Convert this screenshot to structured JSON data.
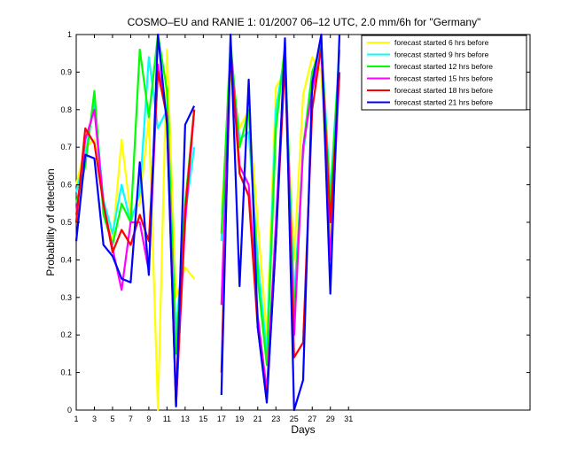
{
  "chart_data": {
    "type": "line",
    "title": "COSMO–EU and RANIE 1: 01/2007 06–12 UTC, 2.0 mm/6h for \"Germany\"",
    "xlabel": "Days",
    "ylabel": "Probability of detection",
    "xlim": [
      1,
      51
    ],
    "ylim": [
      0,
      1
    ],
    "x_ticks": [
      1,
      3,
      5,
      7,
      9,
      11,
      13,
      15,
      17,
      19,
      21,
      23,
      25,
      27,
      29,
      31
    ],
    "y_ticks": [
      0,
      0.1,
      0.2,
      0.3,
      0.4,
      0.5,
      0.6,
      0.7,
      0.8,
      0.9,
      1
    ],
    "y_tick_labels": [
      "0",
      "0.1",
      "0.2",
      "0.3",
      "0.4",
      "0.5",
      "0.6",
      "0.7",
      "0.8",
      "0.9",
      "1"
    ],
    "grid": false,
    "legend_position": "top-right",
    "series": [
      {
        "name": "forecast started 6 hrs before",
        "color": "#ffff00",
        "values": [
          0.6,
          0.7,
          0.72,
          0.55,
          0.45,
          0.72,
          0.52,
          0.55,
          0.78,
          0.0,
          0.96,
          0.3,
          0.38,
          0.35,
          null,
          null,
          0.52,
          0.9,
          0.75,
          0.8,
          0.5,
          0.2,
          0.86,
          0.9,
          0.4,
          0.84,
          0.94,
          0.9,
          0.45,
          0.9,
          null
        ]
      },
      {
        "name": "forecast started 9 hrs before",
        "color": "#00ffff",
        "values": [
          0.58,
          0.68,
          0.82,
          0.56,
          0.47,
          0.6,
          0.5,
          0.58,
          0.94,
          0.75,
          0.8,
          0.2,
          0.52,
          0.7,
          null,
          null,
          0.45,
          0.95,
          0.72,
          0.74,
          0.4,
          0.15,
          0.8,
          0.95,
          0.3,
          0.68,
          0.88,
          0.98,
          0.58,
          0.96,
          null
        ]
      },
      {
        "name": "forecast started 12 hrs before",
        "color": "#00ff00",
        "values": [
          0.55,
          0.65,
          0.85,
          0.52,
          0.44,
          0.55,
          0.5,
          0.96,
          0.78,
          1.0,
          0.85,
          0.15,
          0.55,
          0.8,
          null,
          null,
          0.47,
          0.98,
          0.7,
          0.8,
          0.35,
          0.12,
          0.75,
          0.97,
          0.25,
          0.7,
          0.9,
          0.97,
          0.55,
          0.96,
          null
        ]
      },
      {
        "name": "forecast started 15 hrs before",
        "color": "#ff00ff",
        "values": [
          0.52,
          0.72,
          0.8,
          0.55,
          0.43,
          0.32,
          0.5,
          0.5,
          0.37,
          0.92,
          0.78,
          0.02,
          0.5,
          0.8,
          null,
          null,
          0.28,
          0.97,
          0.65,
          0.6,
          0.25,
          0.05,
          0.5,
          0.95,
          0.2,
          0.7,
          0.85,
          0.96,
          0.4,
          0.9,
          null
        ]
      },
      {
        "name": "forecast started 18 hrs before",
        "color": "#ff0000",
        "values": [
          0.5,
          0.75,
          0.71,
          0.55,
          0.42,
          0.48,
          0.44,
          0.52,
          0.45,
          0.9,
          0.78,
          0.01,
          0.53,
          0.8,
          null,
          null,
          0.1,
          0.96,
          0.63,
          0.57,
          0.22,
          0.03,
          0.45,
          0.93,
          0.14,
          0.18,
          0.8,
          0.97,
          0.5,
          0.9,
          null
        ]
      },
      {
        "name": "forecast started 21 hrs before",
        "color": "#0000ff",
        "values": [
          0.45,
          0.68,
          0.67,
          0.44,
          0.41,
          0.35,
          0.34,
          0.66,
          0.36,
          1.0,
          0.76,
          0.01,
          0.76,
          0.81,
          null,
          null,
          0.04,
          1.0,
          0.33,
          0.88,
          0.22,
          0.02,
          0.45,
          0.99,
          0.0,
          0.08,
          0.87,
          1.0,
          0.31,
          1.0,
          null
        ]
      }
    ]
  }
}
